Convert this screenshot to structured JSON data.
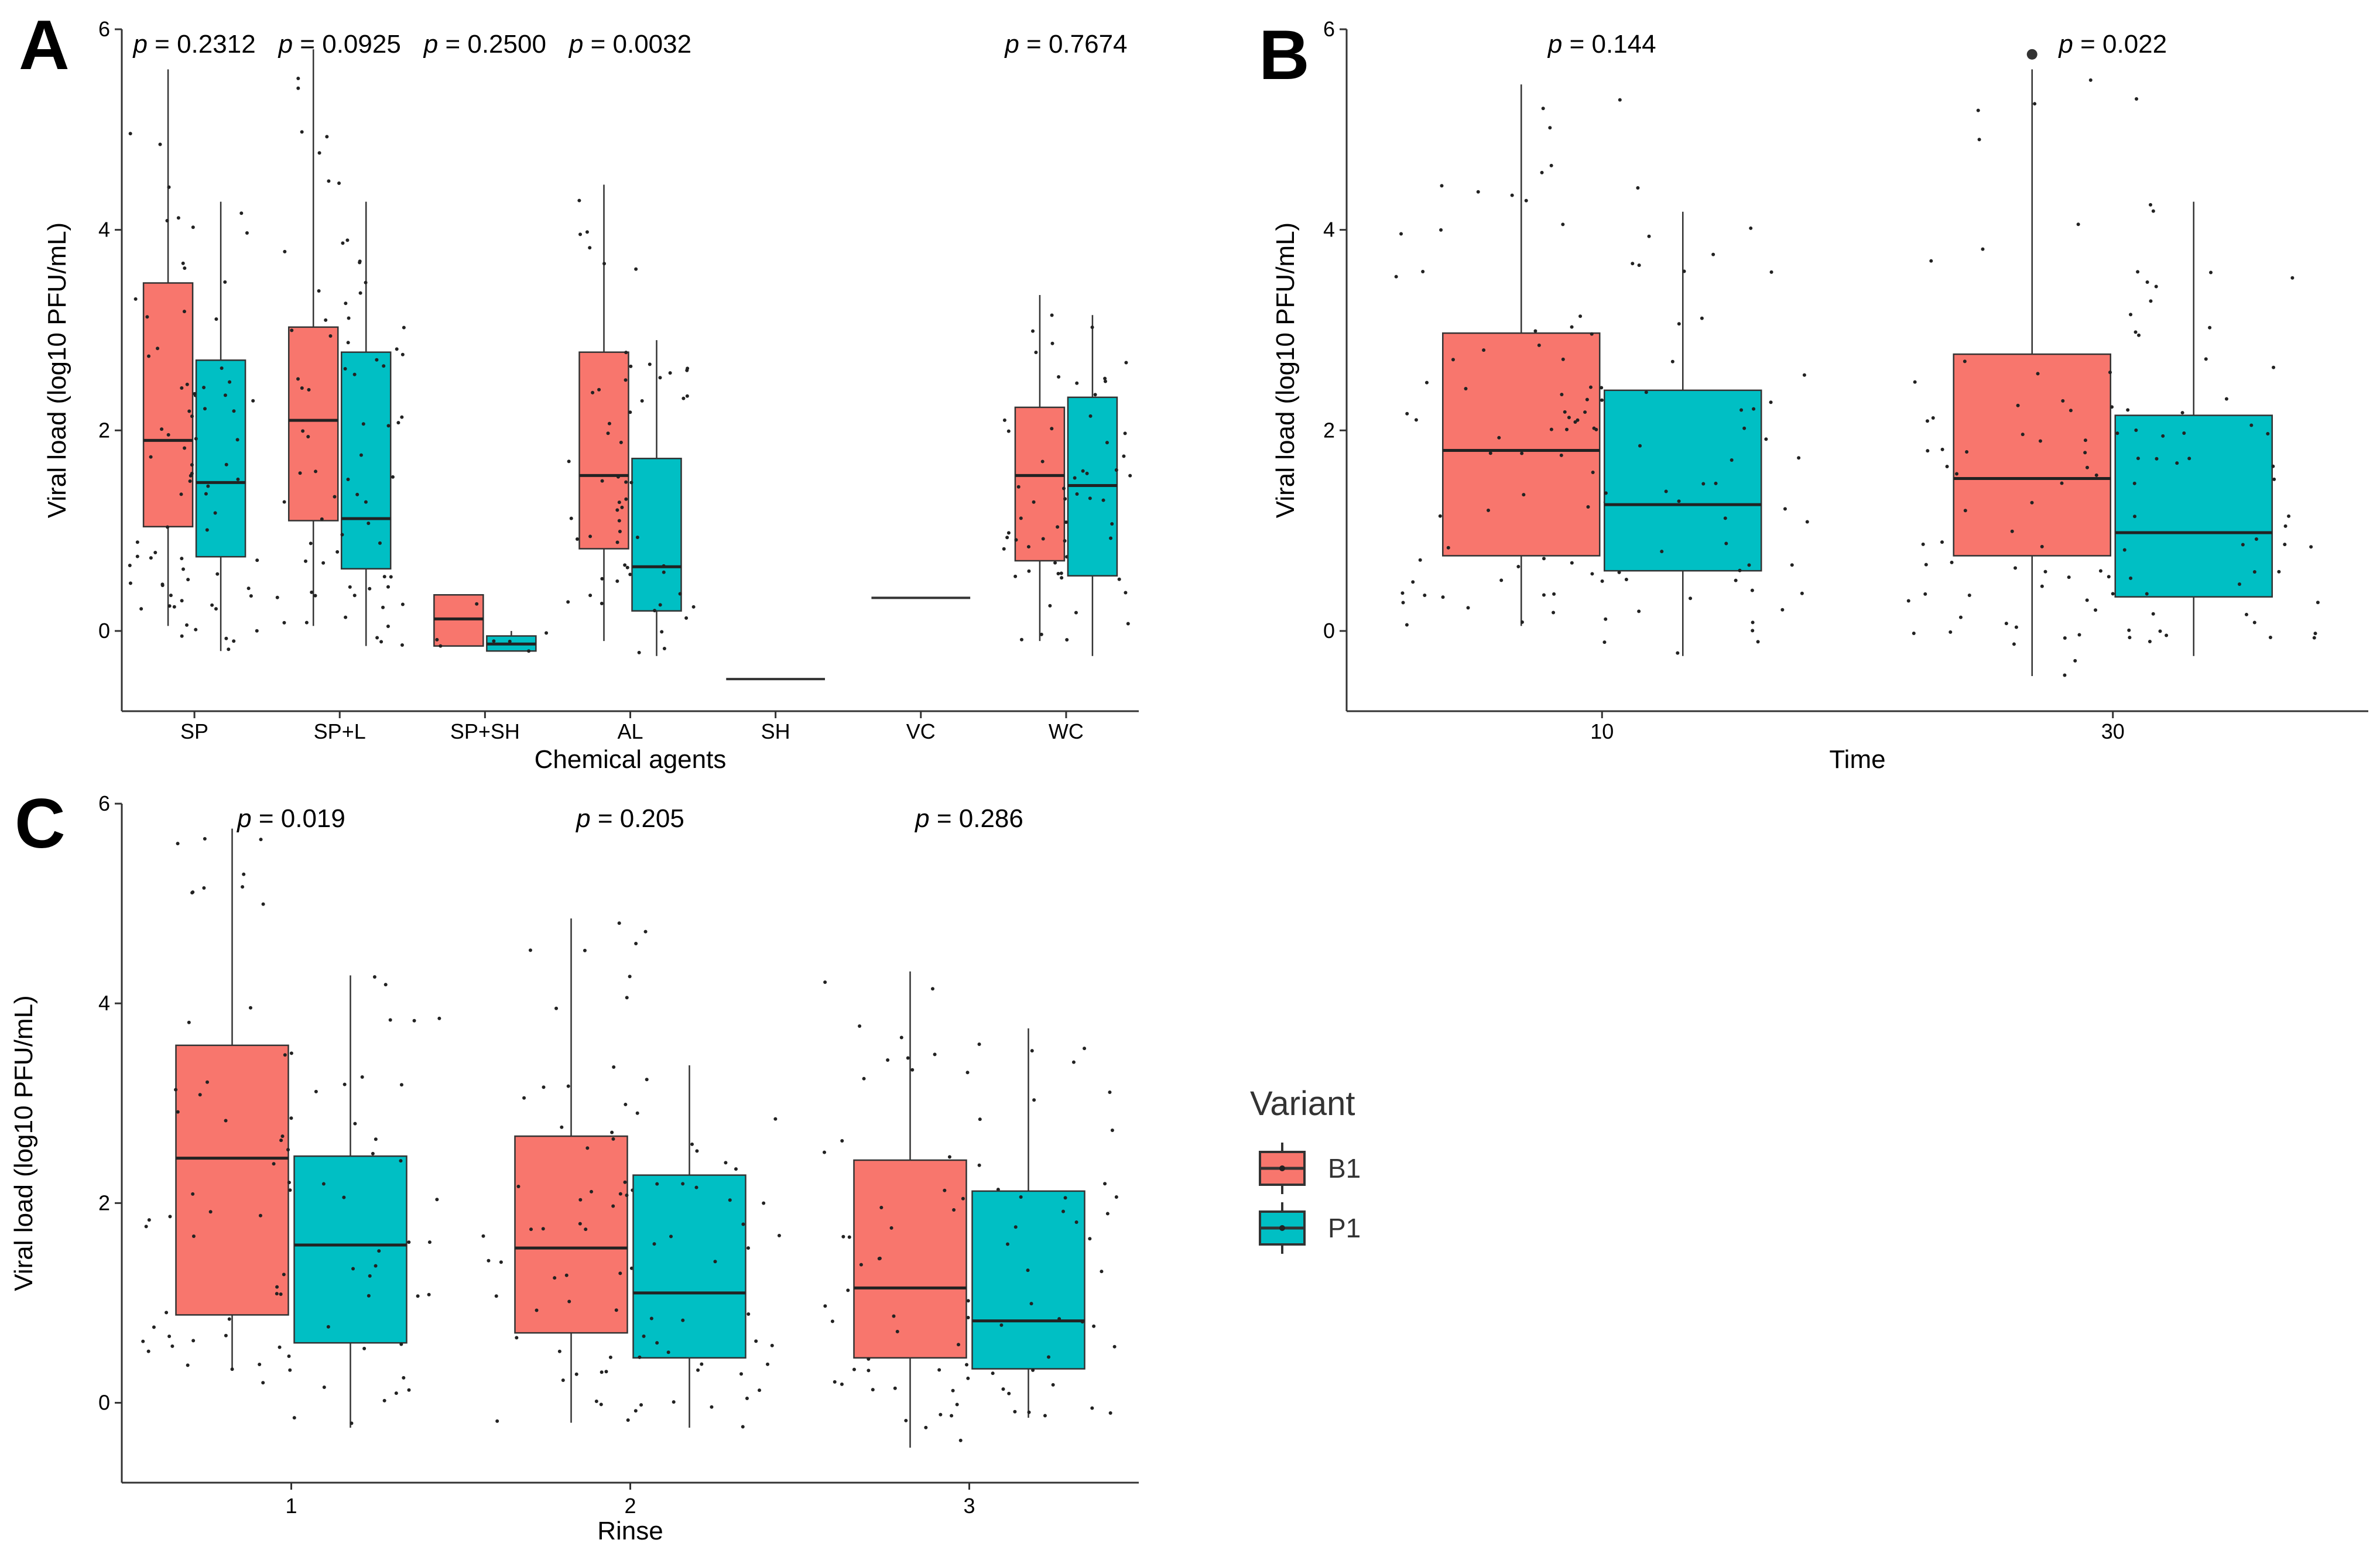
{
  "colors": {
    "B1": "#F8766D",
    "P1": "#00BFC4",
    "stroke": "#333333",
    "axis": "#333333",
    "point": "#222222"
  },
  "legend": {
    "title": "Variant",
    "items": [
      {
        "key": "B1",
        "label": "B1"
      },
      {
        "key": "P1",
        "label": "P1"
      }
    ]
  },
  "chart_data": [
    {
      "panel": "A",
      "type": "boxplot",
      "title": "",
      "xlabel": "Chemical agents",
      "ylabel": "Viral load (log10 PFU/mL)",
      "ylim": [
        -0.8,
        6.0
      ],
      "yticks": [
        0,
        2,
        4,
        6
      ],
      "categories": [
        "SP",
        "SP+L",
        "SP+SH",
        "AL",
        "SH",
        "VC",
        "WC"
      ],
      "pvalues": [
        {
          "category": "SP",
          "prefix": "p",
          "text": " = 0.2312"
        },
        {
          "category": "SP+L",
          "prefix": "p",
          "text": " = 0.0925"
        },
        {
          "category": "SP+SH",
          "prefix": "p",
          "text": " = 0.2500"
        },
        {
          "category": "AL",
          "prefix": "p",
          "text": " = 0.0032"
        },
        {
          "category": "WC",
          "prefix": "p",
          "text": " = 0.7674"
        }
      ],
      "series": [
        {
          "name": "B1",
          "boxes": [
            {
              "category": "SP",
              "min": 0.05,
              "q1": 1.04,
              "median": 1.9,
              "q3": 3.47,
              "max": 5.6,
              "n": 40
            },
            {
              "category": "SP+L",
              "min": 0.05,
              "q1": 1.1,
              "median": 2.1,
              "q3": 3.03,
              "max": 5.8,
              "n": 40
            },
            {
              "category": "SP+SH",
              "min": -0.15,
              "q1": -0.15,
              "median": 0.12,
              "q3": 0.36,
              "max": 0.36,
              "n": 4
            },
            {
              "category": "AL",
              "min": -0.1,
              "q1": 0.82,
              "median": 1.55,
              "q3": 2.78,
              "max": 4.45,
              "n": 30
            },
            {
              "category": "WC",
              "min": -0.1,
              "q1": 0.7,
              "median": 1.55,
              "q3": 2.23,
              "max": 3.35,
              "n": 30
            }
          ]
        },
        {
          "name": "P1",
          "boxes": [
            {
              "category": "SP",
              "min": -0.2,
              "q1": 0.74,
              "median": 1.48,
              "q3": 2.7,
              "max": 4.28,
              "n": 40
            },
            {
              "category": "SP+L",
              "min": -0.15,
              "q1": 0.62,
              "median": 1.12,
              "q3": 2.78,
              "max": 4.28,
              "n": 40
            },
            {
              "category": "SP+SH",
              "min": -0.2,
              "q1": -0.2,
              "median": -0.13,
              "q3": -0.05,
              "max": 0.0,
              "n": 4
            },
            {
              "category": "AL",
              "min": -0.25,
              "q1": 0.2,
              "median": 0.64,
              "q3": 1.72,
              "max": 2.9,
              "n": 30
            },
            {
              "category": "WC",
              "min": -0.25,
              "q1": 0.55,
              "median": 1.45,
              "q3": 2.33,
              "max": 3.15,
              "n": 30
            }
          ]
        }
      ],
      "lines": [
        {
          "category": "SH",
          "value": -0.48
        },
        {
          "category": "VC",
          "value": 0.33
        }
      ],
      "outliers": []
    },
    {
      "panel": "B",
      "type": "boxplot",
      "title": "",
      "xlabel": "Time",
      "ylabel": "Viral load (log10 PFU/mL)",
      "ylim": [
        -0.8,
        6.0
      ],
      "yticks": [
        0,
        2,
        4,
        6
      ],
      "categories": [
        "10",
        "30"
      ],
      "pvalues": [
        {
          "category": "10",
          "prefix": "p",
          "text": " = 0.144"
        },
        {
          "category": "30",
          "prefix": "p",
          "text": " = 0.022"
        }
      ],
      "series": [
        {
          "name": "B1",
          "boxes": [
            {
              "category": "10",
              "min": 0.05,
              "q1": 0.75,
              "median": 1.8,
              "q3": 2.97,
              "max": 5.45,
              "n": 60
            },
            {
              "category": "30",
              "min": -0.45,
              "q1": 0.75,
              "median": 1.52,
              "q3": 2.76,
              "max": 5.6,
              "n": 60
            }
          ]
        },
        {
          "name": "P1",
          "boxes": [
            {
              "category": "10",
              "min": -0.25,
              "q1": 0.6,
              "median": 1.26,
              "q3": 2.4,
              "max": 4.18,
              "n": 60
            },
            {
              "category": "30",
              "min": -0.25,
              "q1": 0.34,
              "median": 0.98,
              "q3": 2.15,
              "max": 4.28,
              "n": 60
            }
          ]
        }
      ],
      "lines": [],
      "outliers": [
        {
          "category": "30",
          "series": "B1",
          "value": 5.75
        }
      ]
    },
    {
      "panel": "C",
      "type": "boxplot",
      "title": "",
      "xlabel": "Rinse",
      "ylabel": "Viral load (log10 PFU/mL)",
      "ylim": [
        -0.8,
        6.0
      ],
      "yticks": [
        0,
        2,
        4,
        6
      ],
      "categories": [
        "1",
        "2",
        "3"
      ],
      "pvalues": [
        {
          "category": "1",
          "prefix": "p",
          "text": " = 0.019"
        },
        {
          "category": "2",
          "prefix": "p",
          "text": " = 0.205"
        },
        {
          "category": "3",
          "prefix": "p",
          "text": " = 0.286"
        }
      ],
      "series": [
        {
          "name": "B1",
          "boxes": [
            {
              "category": "1",
              "min": 0.32,
              "q1": 0.88,
              "median": 2.45,
              "q3": 3.58,
              "max": 5.75,
              "n": 45
            },
            {
              "category": "2",
              "min": -0.2,
              "q1": 0.7,
              "median": 1.55,
              "q3": 2.67,
              "max": 4.85,
              "n": 45
            },
            {
              "category": "3",
              "min": -0.45,
              "q1": 0.45,
              "median": 1.15,
              "q3": 2.43,
              "max": 4.32,
              "n": 45
            }
          ]
        },
        {
          "name": "P1",
          "boxes": [
            {
              "category": "1",
              "min": -0.25,
              "q1": 0.6,
              "median": 1.58,
              "q3": 2.47,
              "max": 4.28,
              "n": 45
            },
            {
              "category": "2",
              "min": -0.25,
              "q1": 0.45,
              "median": 1.1,
              "q3": 2.28,
              "max": 3.38,
              "n": 45
            },
            {
              "category": "3",
              "min": -0.15,
              "q1": 0.34,
              "median": 0.82,
              "q3": 2.12,
              "max": 3.75,
              "n": 45
            }
          ]
        }
      ],
      "lines": [],
      "outliers": []
    }
  ]
}
